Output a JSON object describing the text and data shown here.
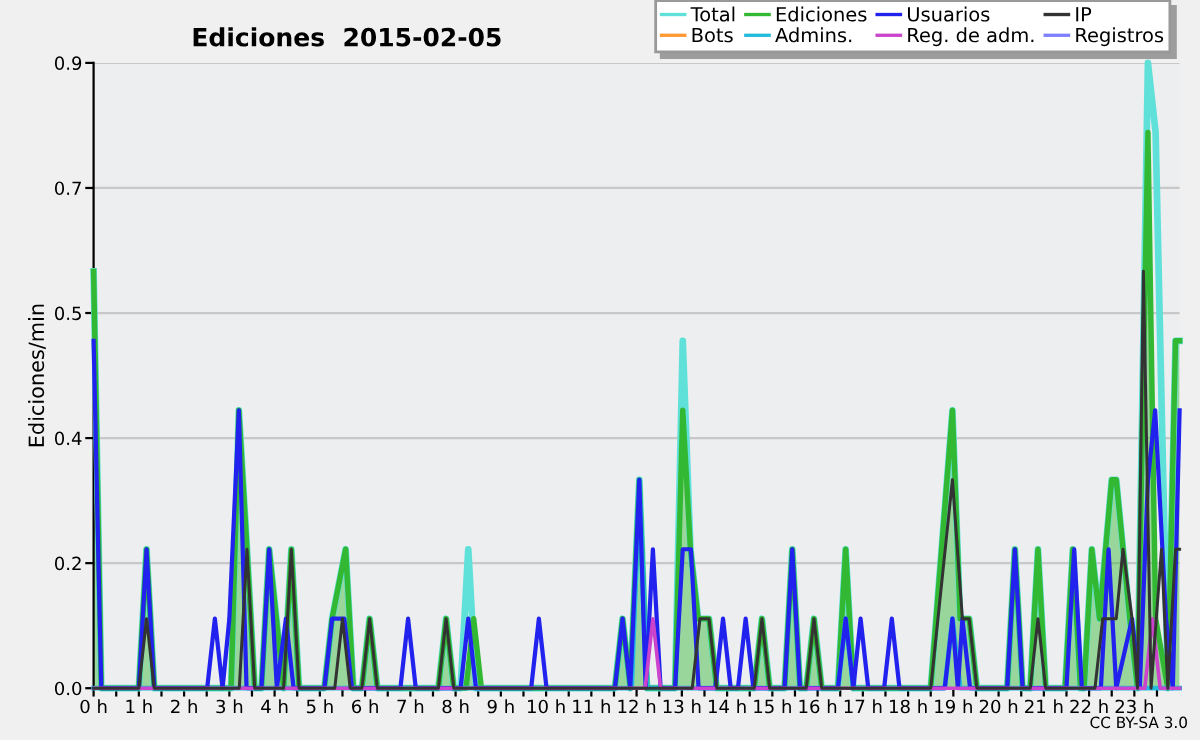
{
  "chart_data": {
    "type": "line",
    "title": "Ediciones  2015-02-05",
    "ylabel": "Ediciones/min",
    "annotations": [
      "CC BY-SA 3.0"
    ],
    "xlim": [
      0,
      24
    ],
    "ylim": [
      0,
      0.9
    ],
    "xticks": [
      {
        "value": 0,
        "label": "0 h"
      },
      {
        "value": 0.5,
        "label": null
      },
      {
        "value": 1,
        "label": "1 h"
      },
      {
        "value": 1.5,
        "label": null
      },
      {
        "value": 2,
        "label": "2 h"
      },
      {
        "value": 2.5,
        "label": null
      },
      {
        "value": 3,
        "label": "3 h"
      },
      {
        "value": 3.5,
        "label": null
      },
      {
        "value": 4,
        "label": "4 h"
      },
      {
        "value": 4.5,
        "label": null
      },
      {
        "value": 5,
        "label": "5 h"
      },
      {
        "value": 5.5,
        "label": null
      },
      {
        "value": 6,
        "label": "6 h"
      },
      {
        "value": 6.5,
        "label": null
      },
      {
        "value": 7,
        "label": "7 h"
      },
      {
        "value": 7.5,
        "label": null
      },
      {
        "value": 8,
        "label": "8 h"
      },
      {
        "value": 8.5,
        "label": null
      },
      {
        "value": 9,
        "label": "9 h"
      },
      {
        "value": 9.5,
        "label": null
      },
      {
        "value": 10,
        "label": "10 h"
      },
      {
        "value": 10.5,
        "label": null
      },
      {
        "value": 11,
        "label": "11 h"
      },
      {
        "value": 11.5,
        "label": null
      },
      {
        "value": 12,
        "label": "12 h"
      },
      {
        "value": 12.5,
        "label": null
      },
      {
        "value": 13,
        "label": "13 h"
      },
      {
        "value": 13.5,
        "label": null
      },
      {
        "value": 14,
        "label": "14 h"
      },
      {
        "value": 14.5,
        "label": null
      },
      {
        "value": 15,
        "label": "15 h"
      },
      {
        "value": 15.5,
        "label": null
      },
      {
        "value": 16,
        "label": "16 h"
      },
      {
        "value": 16.5,
        "label": null
      },
      {
        "value": 17,
        "label": "17 h"
      },
      {
        "value": 17.5,
        "label": null
      },
      {
        "value": 18,
        "label": "18 h"
      },
      {
        "value": 18.5,
        "label": null
      },
      {
        "value": 19,
        "label": "19 h"
      },
      {
        "value": 19.5,
        "label": null
      },
      {
        "value": 20,
        "label": "20 h"
      },
      {
        "value": 20.5,
        "label": null
      },
      {
        "value": 21,
        "label": "21 h"
      },
      {
        "value": 21.5,
        "label": null
      },
      {
        "value": 22,
        "label": "22 h"
      },
      {
        "value": 22.5,
        "label": null
      },
      {
        "value": 23,
        "label": "23 h"
      },
      {
        "value": 23.5,
        "label": null
      }
    ],
    "yticks": [
      {
        "value": 0,
        "label": "0.0"
      },
      {
        "value": 0.18,
        "label": "0.2"
      },
      {
        "value": 0.36,
        "label": "0.4"
      },
      {
        "value": 0.54,
        "label": "0.5"
      },
      {
        "value": 0.72,
        "label": "0.7"
      },
      {
        "value": 0.9,
        "label": "0.9"
      }
    ],
    "grid": "y",
    "legend": "top right",
    "marker": "none",
    "line_style": "solid",
    "series": [
      {
        "name": "Total",
        "color": "#5fe0d8",
        "x": [
          0,
          0.17,
          1.0,
          1.17,
          1.34,
          3.04,
          3.21,
          3.39,
          3.56,
          3.71,
          3.88,
          4.2,
          4.37,
          4.54,
          5.1,
          5.27,
          5.57,
          5.74,
          5.93,
          6.1,
          6.27,
          7.62,
          7.79,
          7.96,
          8.11,
          8.28,
          8.45,
          11.52,
          11.69,
          11.86,
          12.06,
          12.23,
          12.85,
          13.02,
          13.19,
          13.36,
          13.6,
          13.77,
          14.6,
          14.77,
          14.94,
          15.27,
          15.44,
          15.61,
          15.75,
          15.92,
          16.09,
          16.45,
          16.62,
          16.79,
          18.5,
          18.98,
          19.15,
          19.35,
          19.52,
          20.19,
          20.36,
          20.53,
          20.7,
          20.87,
          21.04,
          21.47,
          21.64,
          21.81,
          21.89,
          22.06,
          22.23,
          22.5,
          22.6,
          22.75,
          22.9,
          23.07,
          23.3,
          23.47,
          23.74,
          23.91,
          24
        ],
        "values": [
          0.6,
          0,
          0,
          0.2,
          0,
          0,
          0.4,
          0.2,
          0,
          0,
          0.2,
          0,
          0.2,
          0,
          0,
          0.1,
          0.2,
          0,
          0,
          0.1,
          0,
          0,
          0.1,
          0,
          0,
          0.2,
          0,
          0,
          0.1,
          0,
          0.3,
          0,
          0,
          0.5,
          0.2,
          0.1,
          0.1,
          0,
          0,
          0.1,
          0,
          0,
          0.2,
          0,
          0,
          0.1,
          0,
          0,
          0.2,
          0,
          0,
          0.4,
          0.1,
          0.1,
          0,
          0,
          0.2,
          0,
          0,
          0.2,
          0,
          0,
          0.2,
          0,
          0,
          0.2,
          0.1,
          0.3,
          0.3,
          0.2,
          0.1,
          0,
          0.9,
          0.8,
          0,
          0.5,
          0.5
        ]
      },
      {
        "name": "Bots",
        "color": "#ff9933"
      },
      {
        "name": "Ediciones",
        "type": "area",
        "color": "#33b833",
        "x": [
          0,
          0.17,
          1.0,
          1.17,
          1.34,
          3.04,
          3.21,
          3.39,
          3.56,
          3.71,
          3.88,
          4.2,
          4.37,
          4.54,
          5.1,
          5.27,
          5.57,
          5.74,
          5.93,
          6.1,
          6.27,
          7.62,
          7.79,
          7.96,
          8.23,
          8.4,
          8.57,
          11.52,
          11.69,
          11.86,
          12.06,
          12.23,
          12.85,
          13.02,
          13.19,
          13.36,
          13.6,
          13.77,
          14.6,
          14.77,
          14.94,
          15.27,
          15.44,
          15.61,
          15.75,
          15.92,
          16.09,
          16.45,
          16.62,
          16.79,
          18.5,
          18.98,
          19.15,
          19.35,
          19.52,
          20.19,
          20.36,
          20.53,
          20.7,
          20.87,
          21.04,
          21.47,
          21.64,
          21.81,
          21.89,
          22.06,
          22.23,
          22.5,
          22.6,
          22.75,
          22.9,
          23.07,
          23.3,
          23.47,
          23.74,
          23.91,
          24
        ],
        "values": [
          0.6,
          0,
          0,
          0.2,
          0,
          0,
          0.4,
          0.2,
          0,
          0,
          0.2,
          0,
          0.2,
          0,
          0,
          0.1,
          0.2,
          0,
          0,
          0.1,
          0,
          0,
          0.1,
          0,
          0,
          0.1,
          0,
          0,
          0.1,
          0,
          0.3,
          0,
          0,
          0.4,
          0.2,
          0.1,
          0.1,
          0,
          0,
          0.1,
          0,
          0,
          0.2,
          0,
          0,
          0.1,
          0,
          0,
          0.2,
          0,
          0,
          0.4,
          0.1,
          0.1,
          0,
          0,
          0.2,
          0,
          0,
          0.2,
          0,
          0,
          0.2,
          0,
          0,
          0.2,
          0.1,
          0.3,
          0.3,
          0.2,
          0.1,
          0,
          0.8,
          0.1,
          0,
          0.5,
          0.5
        ]
      },
      {
        "name": "Admins.",
        "color": "#22bbdd",
        "x": [
          0,
          11.89,
          12.06,
          12.23,
          16.45,
          16.62,
          16.79,
          18.81,
          18.98,
          19.15,
          24
        ],
        "values": [
          0,
          0,
          0.3,
          0,
          0,
          0.1,
          0,
          0,
          0.1,
          0,
          0
        ]
      },
      {
        "name": "Usuarios",
        "color": "#2222ee",
        "x": [
          0,
          0.17,
          1.0,
          1.17,
          1.34,
          2.51,
          2.68,
          2.85,
          3.0,
          3.21,
          3.38,
          3.71,
          3.88,
          4.05,
          4.25,
          4.42,
          5.1,
          5.27,
          5.54,
          5.71,
          6.78,
          6.95,
          7.12,
          8.11,
          8.28,
          8.45,
          9.67,
          9.84,
          10.01,
          11.52,
          11.69,
          11.86,
          12.06,
          12.2,
          12.36,
          12.53,
          12.85,
          13.02,
          13.2,
          13.37,
          13.74,
          13.91,
          14.08,
          14.24,
          14.41,
          14.58,
          15.27,
          15.44,
          15.61,
          16.45,
          16.62,
          16.79,
          16.95,
          17.12,
          17.47,
          17.64,
          17.81,
          18.81,
          18.98,
          19.1,
          19.2,
          19.37,
          20.19,
          20.36,
          20.53,
          21.5,
          21.67,
          21.84,
          22.26,
          22.43,
          22.6,
          22.95,
          23.12,
          23.3,
          23.46,
          23.7,
          23.85,
          24
        ],
        "values": [
          0.5,
          0,
          0,
          0.2,
          0,
          0,
          0.1,
          0,
          0.1,
          0.4,
          0,
          0,
          0.2,
          0,
          0.1,
          0,
          0,
          0.1,
          0.1,
          0,
          0,
          0.1,
          0,
          0,
          0.1,
          0,
          0,
          0.1,
          0,
          0,
          0.1,
          0,
          0.3,
          0,
          0.2,
          0,
          0,
          0.2,
          0.2,
          0,
          0,
          0.1,
          0,
          0,
          0.1,
          0,
          0,
          0.2,
          0,
          0,
          0.1,
          0,
          0.1,
          0,
          0,
          0.1,
          0,
          0,
          0.1,
          0,
          0.1,
          0,
          0,
          0.2,
          0,
          0,
          0.2,
          0,
          0,
          0.2,
          0,
          0.1,
          0,
          0.3,
          0.4,
          0.1,
          0,
          0.4
        ]
      },
      {
        "name": "Reg. de adm.",
        "color": "#cc44cc",
        "x": [
          0,
          12.19,
          12.36,
          12.53,
          23.23,
          23.4,
          23.57,
          24
        ],
        "values": [
          0,
          0,
          0.1,
          0,
          0,
          0.1,
          0,
          0
        ]
      },
      {
        "name": "IP",
        "color": "#333333",
        "x": [
          0,
          1.0,
          1.17,
          1.34,
          3.22,
          3.39,
          3.56,
          4.2,
          4.37,
          4.54,
          5.33,
          5.5,
          5.67,
          5.93,
          6.1,
          6.27,
          7.62,
          7.79,
          7.96,
          13.23,
          13.4,
          13.6,
          13.77,
          14.6,
          14.77,
          14.94,
          15.75,
          15.92,
          16.09,
          18.5,
          18.98,
          19.2,
          19.35,
          19.52,
          20.7,
          20.87,
          21.04,
          22.13,
          22.3,
          22.6,
          22.75,
          22.95,
          23.07,
          23.2,
          23.37,
          23.6,
          23.74,
          23.91,
          24
        ],
        "values": [
          0,
          0,
          0.1,
          0,
          0,
          0.2,
          0,
          0,
          0.2,
          0,
          0,
          0.1,
          0,
          0,
          0.1,
          0,
          0,
          0.1,
          0,
          0,
          0.1,
          0.1,
          0,
          0,
          0.1,
          0,
          0,
          0.1,
          0,
          0,
          0.3,
          0.1,
          0.1,
          0,
          0,
          0.1,
          0,
          0,
          0.1,
          0.1,
          0.2,
          0.1,
          0,
          0.6,
          0,
          0.2,
          0,
          0.2,
          0.2
        ]
      },
      {
        "name": "Registros",
        "color": "#8080ff"
      }
    ]
  }
}
